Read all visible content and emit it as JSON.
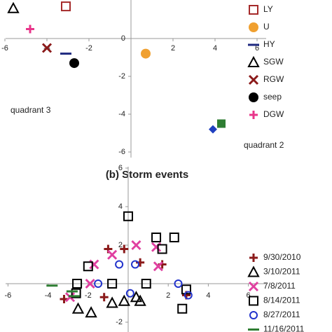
{
  "chart_data": [
    {
      "type": "scatter",
      "annotations": [
        "quadrant 3",
        "quadrant 2"
      ],
      "xlim": [
        -6.2,
        6.5
      ],
      "ylim": [
        -6.2,
        2.1
      ],
      "xticks": [
        -6,
        -4,
        -2,
        2,
        4,
        6
      ],
      "yticks": [
        0,
        -2,
        -4,
        -6
      ],
      "series": [
        {
          "name": "LY",
          "color": "#a52a2a",
          "marker": "square",
          "x": [
            -3.1
          ],
          "values": [
            1.7
          ]
        },
        {
          "name": "U",
          "color": "#f0a030",
          "marker": "disc",
          "x": [
            0.7
          ],
          "values": [
            -0.8
          ]
        },
        {
          "name": "HY",
          "color": "#1f2a80",
          "marker": "dash",
          "x": [
            -3.1
          ],
          "values": [
            -0.8
          ]
        },
        {
          "name": "SGW",
          "color": "#000000",
          "marker": "triangle",
          "x": [
            -5.6
          ],
          "values": [
            1.6
          ]
        },
        {
          "name": "RGW",
          "color": "#8b1a1a",
          "marker": "cross",
          "x": [
            -4.0
          ],
          "values": [
            -0.5
          ]
        },
        {
          "name": "seep",
          "color": "#000000",
          "marker": "disc",
          "x": [
            -2.7
          ],
          "values": [
            -1.3
          ]
        },
        {
          "name": "DGW",
          "color": "#e8358a",
          "marker": "plus",
          "x": [
            -4.8
          ],
          "values": [
            0.5
          ]
        },
        {
          "name": null,
          "color": "#2040c0",
          "marker": "diamond",
          "x": [
            3.9
          ],
          "values": [
            -4.8
          ]
        },
        {
          "name": null,
          "color": "#2e7d32",
          "marker": "block",
          "x": [
            4.3
          ],
          "values": [
            -4.5
          ]
        }
      ]
    },
    {
      "type": "scatter",
      "title": "(b) Storm events",
      "xlim": [
        -6.2,
        6.5
      ],
      "ylim": [
        -2.5,
        6.1
      ],
      "xticks": [
        -6,
        -4,
        -2,
        2,
        4,
        6
      ],
      "yticks": [
        6,
        4,
        2,
        -2
      ],
      "series": [
        {
          "name": "9/30/2010",
          "color": "#8b1a1a",
          "marker": "plus",
          "x": [
            -3.2,
            -1.0,
            -0.2,
            0.6,
            1.7,
            2.9,
            -1.2
          ],
          "values": [
            -0.8,
            1.8,
            1.8,
            1.1,
            1.0,
            -0.6,
            -0.7
          ]
        },
        {
          "name": "3/10/2011",
          "color": "#000000",
          "marker": "triangle",
          "x": [
            -1.85,
            -0.8,
            -0.2,
            0.6,
            -2.5,
            0.4
          ],
          "values": [
            -1.5,
            -1.0,
            -0.9,
            -0.9,
            -1.3,
            -0.7
          ]
        },
        {
          "name": "7/8/2011",
          "color": "#e040a0",
          "marker": "cross",
          "x": [
            -1.7,
            -0.8,
            0.4,
            1.4,
            1.5,
            -1.9,
            -2.9
          ],
          "values": [
            1.0,
            1.5,
            2.0,
            1.9,
            0.9,
            0.0,
            -0.7
          ]
        },
        {
          "name": "8/14/2011",
          "color": "#000000",
          "marker": "square",
          "x": [
            0.0,
            1.4,
            2.3,
            1.7,
            -2.0,
            -2.55,
            0.9,
            -0.8,
            2.9,
            2.7,
            -2.6
          ],
          "values": [
            3.5,
            2.4,
            2.4,
            1.8,
            0.9,
            0.0,
            0.0,
            0.0,
            -0.3,
            -1.3,
            -0.5
          ]
        },
        {
          "name": "8/27/2011",
          "color": "#2233cc",
          "marker": "circle",
          "x": [
            -1.5,
            -0.45,
            0.35,
            2.5,
            3.0,
            0.1
          ],
          "values": [
            0.0,
            1.0,
            1.0,
            0.0,
            -0.6,
            -0.5
          ]
        },
        {
          "name": "11/16/2011",
          "color": "#2e7d32",
          "marker": "dash",
          "x": [
            -3.8,
            -2.8,
            -2.7
          ],
          "values": [
            -0.1,
            -0.4,
            -0.65
          ]
        }
      ]
    }
  ]
}
